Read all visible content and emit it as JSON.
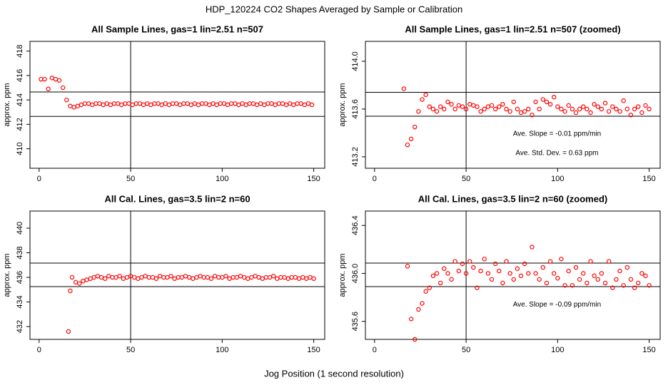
{
  "title": "HDP_120224  CO2 Shapes Averaged by Sample or Calibration",
  "xlabel": "Jog Position (1 second resolution)",
  "chart_data": [
    {
      "type": "scatter",
      "title": "All Sample Lines, gas=1 lin=2.51 n=507",
      "ylabel": "approx. ppm",
      "xlim": [
        -5,
        156
      ],
      "ylim": [
        408.4,
        418.8
      ],
      "xticks": [
        0,
        50,
        100,
        150
      ],
      "yticks": [
        410,
        412,
        414,
        416,
        418
      ],
      "hlines": [
        414.65,
        412.65
      ],
      "vlines": [
        50
      ],
      "annotations": [],
      "x": [
        1,
        3,
        5,
        7,
        9,
        11,
        13,
        15,
        17,
        19,
        21,
        23,
        25,
        27,
        29,
        31,
        33,
        35,
        37,
        39,
        41,
        43,
        45,
        47,
        49,
        51,
        53,
        55,
        57,
        59,
        61,
        63,
        65,
        67,
        69,
        71,
        73,
        75,
        77,
        79,
        81,
        83,
        85,
        87,
        89,
        91,
        93,
        95,
        97,
        99,
        101,
        103,
        105,
        107,
        109,
        111,
        113,
        115,
        117,
        119,
        121,
        123,
        125,
        127,
        129,
        131,
        133,
        135,
        137,
        139,
        141,
        143,
        145,
        147,
        149
      ],
      "series": [
        {
          "color": "#ff0000",
          "values": [
            415.7,
            415.7,
            414.9,
            415.8,
            415.7,
            415.6,
            415.0,
            414.0,
            413.5,
            413.4,
            413.5,
            413.6,
            413.7,
            413.7,
            413.6,
            413.7,
            413.7,
            413.6,
            413.7,
            413.6,
            413.7,
            413.7,
            413.6,
            413.7,
            413.7,
            413.6,
            413.7,
            413.7,
            413.6,
            413.7,
            413.6,
            413.7,
            413.7,
            413.6,
            413.7,
            413.6,
            413.7,
            413.7,
            413.6,
            413.7,
            413.7,
            413.6,
            413.7,
            413.6,
            413.7,
            413.7,
            413.6,
            413.7,
            413.6,
            413.7,
            413.7,
            413.6,
            413.7,
            413.7,
            413.6,
            413.7,
            413.6,
            413.7,
            413.7,
            413.6,
            413.7,
            413.6,
            413.7,
            413.7,
            413.6,
            413.7,
            413.7,
            413.6,
            413.7,
            413.6,
            413.7,
            413.7,
            413.6,
            413.7,
            413.6
          ]
        }
      ]
    },
    {
      "type": "scatter",
      "title": "All Sample Lines, gas=1 lin=2.51 n=507 (zoomed)",
      "ylabel": "approx. ppm",
      "xlim": [
        -5,
        156
      ],
      "ylim": [
        413.104,
        414.167
      ],
      "xticks": [
        0,
        50,
        100,
        150
      ],
      "yticks": [
        413.2,
        413.6,
        {
          "value": 414,
          "label": "414.0"
        }
      ],
      "hlines": [
        413.74,
        413.54
      ],
      "vlines": [
        50
      ],
      "annotations": [
        "Ave. Slope =  -0.01  ppm/min",
        "Ave. Std. Dev. =  0.63  ppm"
      ],
      "x": [
        16,
        18,
        20,
        22,
        24,
        26,
        28,
        30,
        32,
        34,
        36,
        38,
        40,
        42,
        44,
        46,
        48,
        50,
        52,
        54,
        56,
        58,
        60,
        62,
        64,
        66,
        68,
        70,
        72,
        74,
        76,
        78,
        80,
        82,
        84,
        86,
        88,
        90,
        92,
        94,
        96,
        98,
        100,
        102,
        104,
        106,
        108,
        110,
        112,
        114,
        116,
        118,
        120,
        122,
        124,
        126,
        128,
        130,
        132,
        134,
        136,
        138,
        140,
        142,
        144,
        146,
        148,
        150
      ],
      "series": [
        {
          "color": "#ff0000",
          "values": [
            413.77,
            413.3,
            413.35,
            413.45,
            413.58,
            413.68,
            413.72,
            413.62,
            413.6,
            413.58,
            413.62,
            413.6,
            413.66,
            413.64,
            413.6,
            413.63,
            413.62,
            413.6,
            413.64,
            413.63,
            413.62,
            413.58,
            413.6,
            413.62,
            413.63,
            413.6,
            413.62,
            413.64,
            413.6,
            413.58,
            413.66,
            413.6,
            413.57,
            413.58,
            413.6,
            413.55,
            413.66,
            413.6,
            413.68,
            413.66,
            413.64,
            413.7,
            413.62,
            413.6,
            413.58,
            413.63,
            413.6,
            413.57,
            413.6,
            413.62,
            413.6,
            413.57,
            413.64,
            413.62,
            413.6,
            413.65,
            413.58,
            413.62,
            413.6,
            413.58,
            413.67,
            413.6,
            413.55,
            413.6,
            413.62,
            413.57,
            413.63,
            413.6
          ]
        }
      ]
    },
    {
      "type": "scatter",
      "title": "All Cal. Lines, gas=3.5 lin=2 n=60",
      "ylabel": "approx. ppm",
      "xlim": [
        -5,
        156
      ],
      "ylim": [
        430.96,
        441.39
      ],
      "xticks": [
        0,
        50,
        100,
        150
      ],
      "yticks": [
        432,
        434,
        436,
        438,
        440
      ],
      "hlines": [
        437.16,
        435.25
      ],
      "vlines": [
        50
      ],
      "annotations": [],
      "x": [
        16,
        17,
        18,
        20,
        22,
        24,
        26,
        28,
        30,
        32,
        34,
        36,
        38,
        40,
        42,
        44,
        46,
        48,
        50,
        52,
        54,
        56,
        58,
        60,
        62,
        64,
        66,
        68,
        70,
        72,
        74,
        76,
        78,
        80,
        82,
        84,
        86,
        88,
        90,
        92,
        94,
        96,
        98,
        100,
        102,
        104,
        106,
        108,
        110,
        112,
        114,
        116,
        118,
        120,
        122,
        124,
        126,
        128,
        130,
        132,
        134,
        136,
        138,
        140,
        142,
        144,
        146,
        148,
        150
      ],
      "series": [
        {
          "color": "#ff0000",
          "values": [
            431.6,
            434.9,
            436.0,
            435.6,
            435.5,
            435.7,
            435.8,
            435.9,
            436.0,
            436.1,
            436.0,
            435.9,
            436.1,
            436.0,
            436.0,
            436.1,
            435.9,
            436.0,
            436.1,
            436.0,
            435.9,
            436.0,
            436.1,
            436.0,
            436.0,
            435.9,
            436.1,
            436.0,
            436.0,
            436.1,
            435.9,
            436.0,
            436.0,
            436.1,
            436.0,
            435.9,
            436.0,
            436.1,
            436.0,
            436.0,
            435.9,
            436.1,
            436.0,
            436.0,
            436.1,
            435.9,
            436.0,
            436.0,
            436.1,
            436.0,
            435.9,
            436.0,
            436.1,
            436.0,
            435.9,
            436.0,
            436.0,
            436.1,
            435.9,
            436.0,
            436.0,
            435.9,
            436.0,
            436.0,
            435.9,
            436.0,
            435.9,
            436.0,
            435.9
          ]
        }
      ]
    },
    {
      "type": "scatter",
      "title": "All Cal. Lines, gas=3.5 lin=2 n=60 (zoomed)",
      "ylabel": "approx. ppm",
      "xlim": [
        -5,
        156
      ],
      "ylim": [
        435.45,
        436.52
      ],
      "xticks": [
        0,
        50,
        100,
        150
      ],
      "yticks": [
        435.6,
        {
          "value": 436,
          "label": "436.0"
        },
        436.4
      ],
      "hlines": [
        436.086,
        435.89
      ],
      "vlines": [
        50
      ],
      "annotations": [
        "Ave. Slope =  -0.09  ppm/min"
      ],
      "x": [
        18,
        20,
        22,
        24,
        26,
        28,
        30,
        32,
        34,
        36,
        38,
        40,
        42,
        44,
        46,
        48,
        50,
        52,
        54,
        56,
        58,
        60,
        62,
        64,
        66,
        68,
        70,
        72,
        74,
        76,
        78,
        80,
        82,
        84,
        86,
        88,
        90,
        92,
        94,
        96,
        98,
        100,
        102,
        104,
        106,
        108,
        110,
        112,
        114,
        116,
        118,
        120,
        122,
        124,
        126,
        128,
        130,
        132,
        134,
        136,
        138,
        140,
        142,
        144,
        146,
        148,
        150
      ],
      "series": [
        {
          "color": "#ff0000",
          "values": [
            436.06,
            435.62,
            435.45,
            435.7,
            435.75,
            435.85,
            435.88,
            435.98,
            436.0,
            435.92,
            436.04,
            436.0,
            435.95,
            436.1,
            436.02,
            436.08,
            436.0,
            436.1,
            436.05,
            435.88,
            436.02,
            436.12,
            436.0,
            435.95,
            436.08,
            436.02,
            435.92,
            436.1,
            436.0,
            435.95,
            436.04,
            435.98,
            436.08,
            436.0,
            436.22,
            436.0,
            435.95,
            436.05,
            435.92,
            436.1,
            436.0,
            435.96,
            436.12,
            435.9,
            436.02,
            435.9,
            436.05,
            435.95,
            436.0,
            435.92,
            436.1,
            435.98,
            435.95,
            436.0,
            435.92,
            436.1,
            435.88,
            435.95,
            436.02,
            435.9,
            436.05,
            435.95,
            435.88,
            435.92,
            436.0,
            435.98,
            435.9
          ]
        }
      ]
    }
  ]
}
